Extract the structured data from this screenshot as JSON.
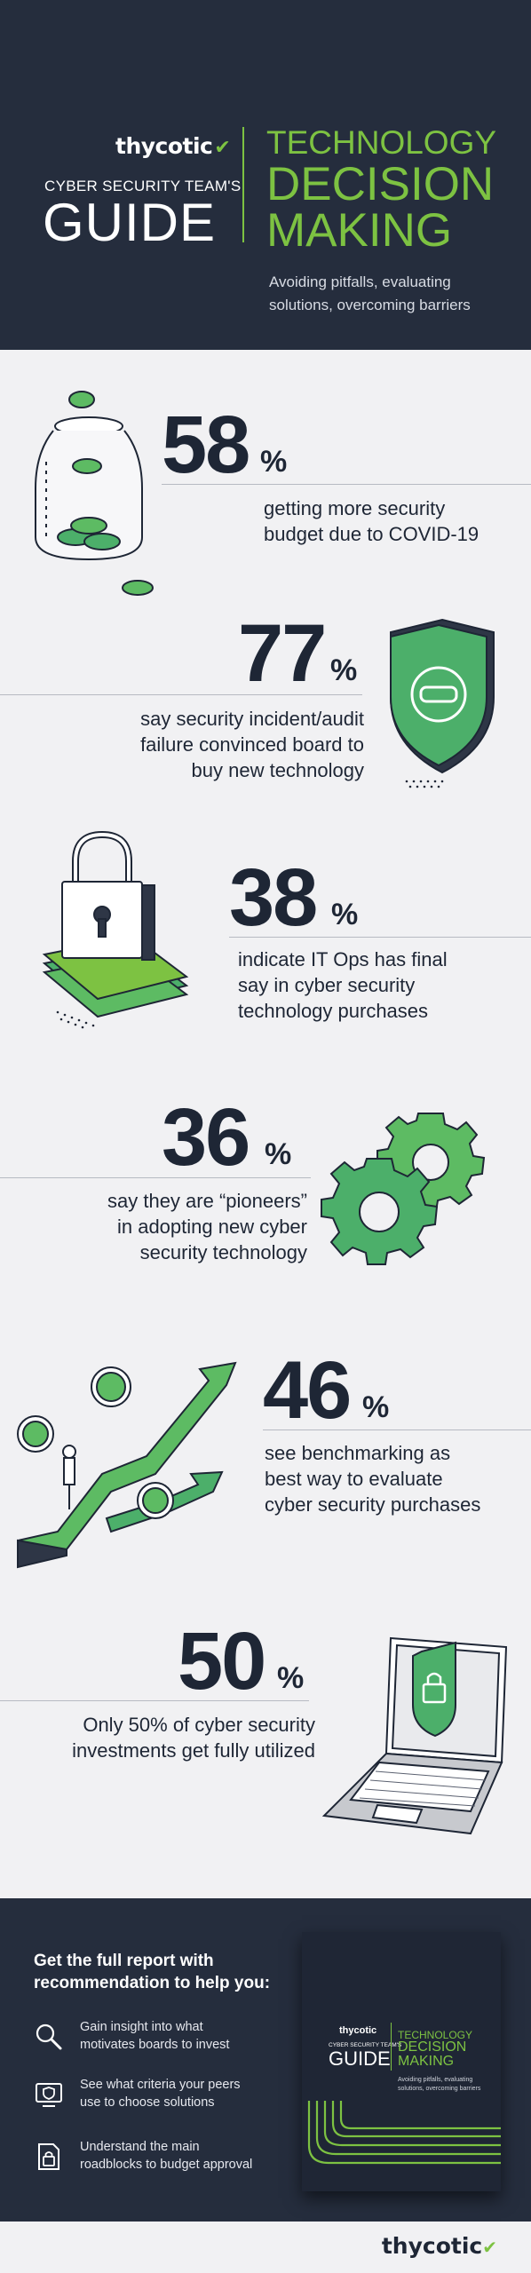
{
  "header": {
    "logo": "thycotic",
    "subtitle": "CYBER SECURITY TEAM'S",
    "guide": "GUIDE",
    "title_line1": "TECHNOLOGY",
    "title_line2": "DECISION",
    "title_line3": "MAKING",
    "tagline_line1": "Avoiding pitfalls, evaluating",
    "tagline_line2": "solutions, overcoming barriers"
  },
  "stats": [
    {
      "value": "58",
      "unit": "%",
      "lines": [
        "getting more security",
        "budget due to COVID-19"
      ],
      "icon": "jar-of-coins-icon"
    },
    {
      "value": "77",
      "unit": "%",
      "lines": [
        "say security incident/audit",
        "failure convinced board to",
        "buy new technology"
      ],
      "icon": "shield-icon"
    },
    {
      "value": "38",
      "unit": "%",
      "lines": [
        "indicate IT Ops has final",
        "say in cyber security",
        "technology purchases"
      ],
      "icon": "padlock-money-icon"
    },
    {
      "value": "36",
      "unit": "%",
      "lines": [
        "say they are “pioneers”",
        "in adopting new cyber",
        "security technology"
      ],
      "icon": "gears-icon"
    },
    {
      "value": "46",
      "unit": "%",
      "lines": [
        "see benchmarking as",
        "best way to evaluate",
        "cyber security purchases"
      ],
      "icon": "staircase-arrows-icon"
    },
    {
      "value": "50",
      "unit": "%",
      "lines": [
        "Only 50% of cyber security",
        "investments get fully utilized"
      ],
      "icon": "laptop-shield-icon"
    }
  ],
  "footer": {
    "heading_line1": "Get the full report with",
    "heading_line2": "recommendation to help you:",
    "items": [
      {
        "icon": "magnifier-icon",
        "line1": "Gain insight into what",
        "line2": "motivates boards to invest"
      },
      {
        "icon": "screen-shield-icon",
        "line1": "See what criteria your peers",
        "line2": "use to choose solutions"
      },
      {
        "icon": "document-lock-icon",
        "line1": "Understand the main",
        "line2": "roadblocks to budget approval"
      }
    ],
    "book": {
      "logo": "thycotic",
      "subtitle": "CYBER SECURITY TEAM'S",
      "guide": "GUIDE",
      "title_line1": "TECHNOLOGY",
      "title_line2": "DECISION",
      "title_line3": "MAKING",
      "tagline_line1": "Avoiding pitfalls, evaluating",
      "tagline_line2": "solutions, overcoming barriers"
    }
  },
  "bottom_logo": "thycotic",
  "colors": {
    "navy": "#252d3d",
    "green": "#7dc242",
    "teal": "#3fb8a6",
    "background": "#f1f1f3",
    "text": "#1e2635"
  }
}
